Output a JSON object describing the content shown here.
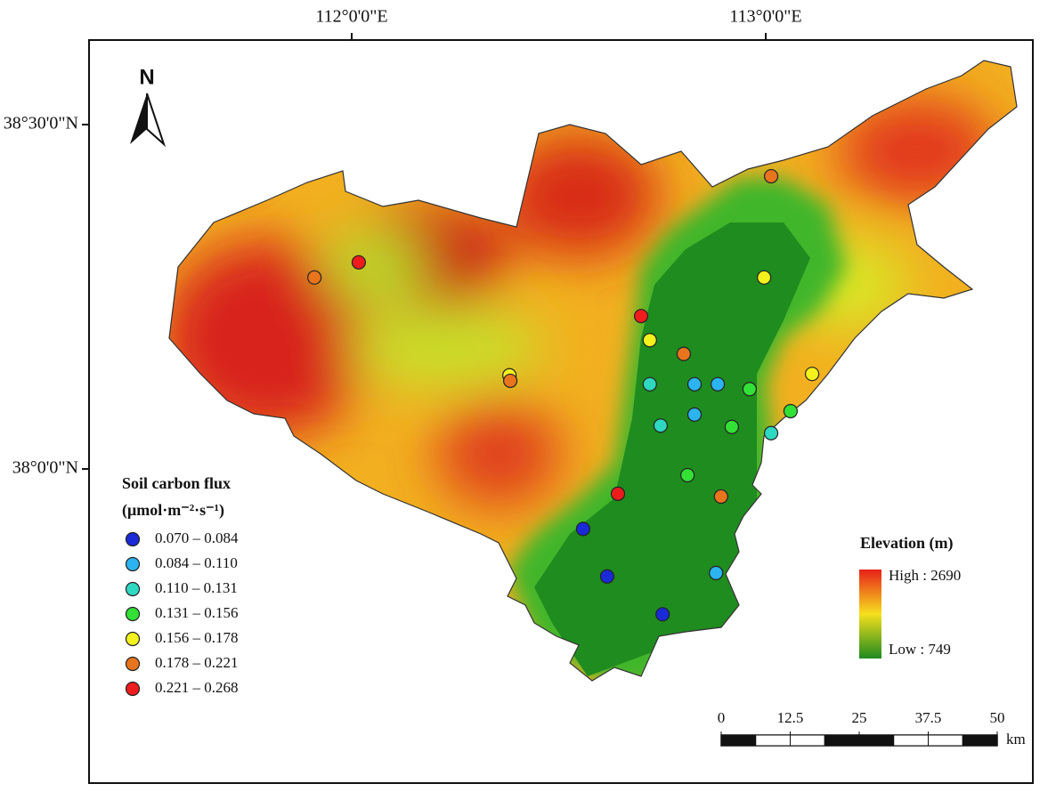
{
  "map": {
    "north_label": "N",
    "lon_ticks": [
      {
        "value": 112,
        "label": "112°0'0\"E"
      },
      {
        "value": 113,
        "label": "113°0'0\"E"
      }
    ],
    "lat_ticks": [
      {
        "value": 38.5,
        "label": "38°30'0\"N"
      },
      {
        "value": 38,
        "label": "38°0'0\"N"
      }
    ],
    "legend": {
      "title": "Soil carbon flux",
      "unit": "(μmol·m⁻²·s⁻¹)",
      "classes": [
        {
          "label": "0.070 – 0.084",
          "color": "#1a2ad6"
        },
        {
          "label": "0.084 – 0.110",
          "color": "#2cb4f0"
        },
        {
          "label": "0.110 – 0.131",
          "color": "#2fd8c0"
        },
        {
          "label": "0.131 – 0.156",
          "color": "#33e035"
        },
        {
          "label": "0.156 – 0.178",
          "color": "#f4f21c"
        },
        {
          "label": "0.178 – 0.221",
          "color": "#e8751e"
        },
        {
          "label": "0.221 – 0.268",
          "color": "#ee1c1c"
        }
      ]
    },
    "elevation_legend": {
      "title": "Elevation (m)",
      "high": {
        "value": 2690,
        "label": "High : 2690"
      },
      "low": {
        "value": 749,
        "label": "Low : 749"
      }
    },
    "scalebar": {
      "ticks": [
        0,
        12.5,
        25,
        37.5,
        50
      ],
      "unit": "km"
    },
    "sites": [
      {
        "lon": 113.013,
        "lat": 38.425,
        "class": 5
      },
      {
        "lon": 111.91,
        "lat": 38.278,
        "class": 5
      },
      {
        "lon": 112.017,
        "lat": 38.3,
        "class": 6
      },
      {
        "lon": 112.996,
        "lat": 38.278,
        "class": 4
      },
      {
        "lon": 112.699,
        "lat": 38.222,
        "class": 6
      },
      {
        "lon": 112.72,
        "lat": 38.187,
        "class": 4
      },
      {
        "lon": 112.802,
        "lat": 38.167,
        "class": 5
      },
      {
        "lon": 112.381,
        "lat": 38.136,
        "class": 4
      },
      {
        "lon": 112.383,
        "lat": 38.128,
        "class": 5
      },
      {
        "lon": 113.112,
        "lat": 38.138,
        "class": 4
      },
      {
        "lon": 112.72,
        "lat": 38.123,
        "class": 2
      },
      {
        "lon": 112.828,
        "lat": 38.123,
        "class": 1
      },
      {
        "lon": 112.884,
        "lat": 38.123,
        "class": 1
      },
      {
        "lon": 112.961,
        "lat": 38.116,
        "class": 3
      },
      {
        "lon": 113.06,
        "lat": 38.084,
        "class": 3
      },
      {
        "lon": 112.828,
        "lat": 38.079,
        "class": 1
      },
      {
        "lon": 112.746,
        "lat": 38.063,
        "class": 2
      },
      {
        "lon": 112.918,
        "lat": 38.061,
        "class": 3
      },
      {
        "lon": 113.013,
        "lat": 38.052,
        "class": 2
      },
      {
        "lon": 112.811,
        "lat": 37.991,
        "class": 3
      },
      {
        "lon": 112.643,
        "lat": 37.964,
        "class": 6
      },
      {
        "lon": 112.892,
        "lat": 37.96,
        "class": 5
      },
      {
        "lon": 112.559,
        "lat": 37.913,
        "class": 0
      },
      {
        "lon": 112.617,
        "lat": 37.844,
        "class": 0
      },
      {
        "lon": 112.88,
        "lat": 37.849,
        "class": 1
      },
      {
        "lon": 112.751,
        "lat": 37.789,
        "class": 0
      }
    ]
  }
}
